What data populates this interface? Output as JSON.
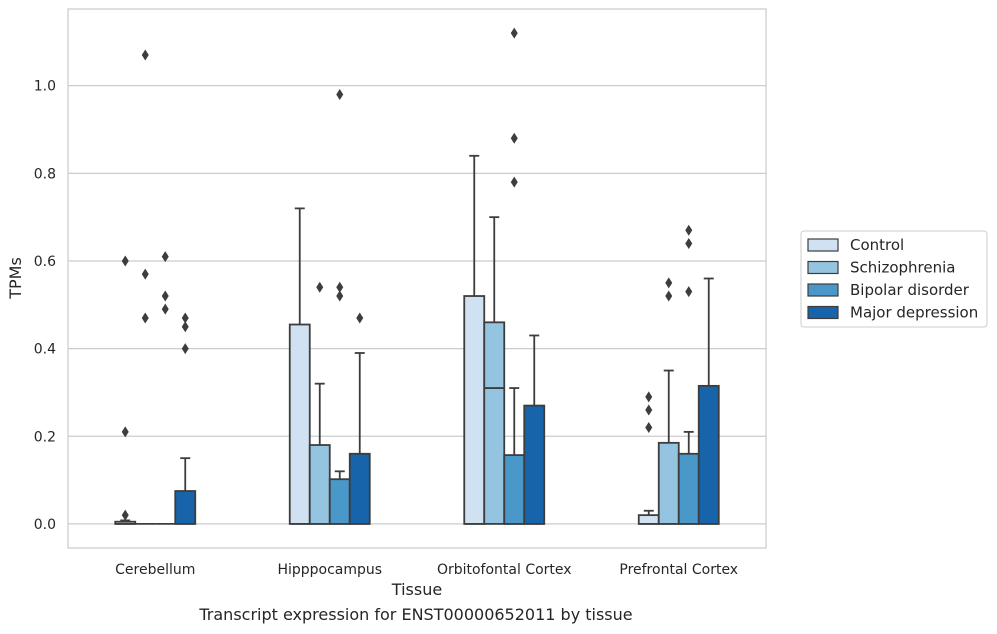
{
  "caption": "Transcript expression for ENST00000652011 by tissue",
  "chart_data": {
    "type": "box",
    "xlabel": "Tissue",
    "ylabel": "TPMs",
    "ylim": [
      -0.055,
      1.175
    ],
    "yticks": [
      0.0,
      0.2,
      0.4,
      0.6,
      0.8,
      1.0
    ],
    "ytick_labels": [
      "0.0",
      "0.2",
      "0.4",
      "0.6",
      "0.8",
      "1.0"
    ],
    "grid": "horizontal",
    "legend_position": "right",
    "categories": [
      "Cerebellum",
      "Hipppocampus",
      "Orbitofontal Cortex",
      "Prefrontal Cortex"
    ],
    "series": [
      {
        "name": "Control",
        "color": "#d0e1f2",
        "boxes": [
          {
            "q1": 0.0,
            "median": 0.0,
            "q3": 0.005,
            "whisker_low": 0.0,
            "whisker_high": 0.008,
            "outliers": [
              0.02,
              0.21,
              0.6
            ]
          },
          {
            "q1": 0.0,
            "median": 0.0,
            "q3": 0.455,
            "whisker_low": 0.0,
            "whisker_high": 0.72,
            "outliers": []
          },
          {
            "q1": 0.0,
            "median": 0.0,
            "q3": 0.52,
            "whisker_low": 0.0,
            "whisker_high": 0.84,
            "outliers": []
          },
          {
            "q1": 0.0,
            "median": 0.0,
            "q3": 0.02,
            "whisker_low": 0.0,
            "whisker_high": 0.03,
            "outliers": [
              0.22,
              0.26,
              0.29
            ]
          }
        ]
      },
      {
        "name": "Schizophrenia",
        "color": "#94c4df",
        "boxes": [
          {
            "q1": 0.0,
            "median": 0.0,
            "q3": 0.0,
            "whisker_low": 0.0,
            "whisker_high": 0.0,
            "outliers": [
              0.47,
              0.57,
              1.07
            ]
          },
          {
            "q1": 0.0,
            "median": 0.0,
            "q3": 0.18,
            "whisker_low": 0.0,
            "whisker_high": 0.32,
            "outliers": [
              0.54
            ]
          },
          {
            "q1": 0.0,
            "median": 0.31,
            "q3": 0.46,
            "whisker_low": 0.0,
            "whisker_high": 0.7,
            "outliers": []
          },
          {
            "q1": 0.0,
            "median": 0.0,
            "q3": 0.185,
            "whisker_low": 0.0,
            "whisker_high": 0.35,
            "outliers": [
              0.52,
              0.55
            ]
          }
        ]
      },
      {
        "name": "Bipolar disorder",
        "color": "#4a98c9",
        "boxes": [
          {
            "q1": 0.0,
            "median": 0.0,
            "q3": 0.0,
            "whisker_low": 0.0,
            "whisker_high": 0.0,
            "outliers": [
              0.49,
              0.52,
              0.61
            ]
          },
          {
            "q1": 0.0,
            "median": 0.0,
            "q3": 0.102,
            "whisker_low": 0.0,
            "whisker_high": 0.12,
            "outliers": [
              0.52,
              0.54,
              0.98
            ]
          },
          {
            "q1": 0.0,
            "median": 0.0,
            "q3": 0.157,
            "whisker_low": 0.0,
            "whisker_high": 0.31,
            "outliers": [
              0.78,
              0.88,
              1.12
            ]
          },
          {
            "q1": 0.0,
            "median": 0.0,
            "q3": 0.16,
            "whisker_low": 0.0,
            "whisker_high": 0.21,
            "outliers": [
              0.53,
              0.64,
              0.67
            ]
          }
        ]
      },
      {
        "name": "Major depression",
        "color": "#1764ab",
        "boxes": [
          {
            "q1": 0.0,
            "median": 0.0,
            "q3": 0.075,
            "whisker_low": 0.0,
            "whisker_high": 0.15,
            "outliers": [
              0.4,
              0.45,
              0.47
            ]
          },
          {
            "q1": 0.0,
            "median": 0.0,
            "q3": 0.16,
            "whisker_low": 0.0,
            "whisker_high": 0.39,
            "outliers": [
              0.47
            ]
          },
          {
            "q1": 0.0,
            "median": 0.0,
            "q3": 0.27,
            "whisker_low": 0.0,
            "whisker_high": 0.43,
            "outliers": []
          },
          {
            "q1": 0.0,
            "median": 0.0,
            "q3": 0.315,
            "whisker_low": 0.0,
            "whisker_high": 0.56,
            "outliers": []
          }
        ]
      }
    ]
  }
}
